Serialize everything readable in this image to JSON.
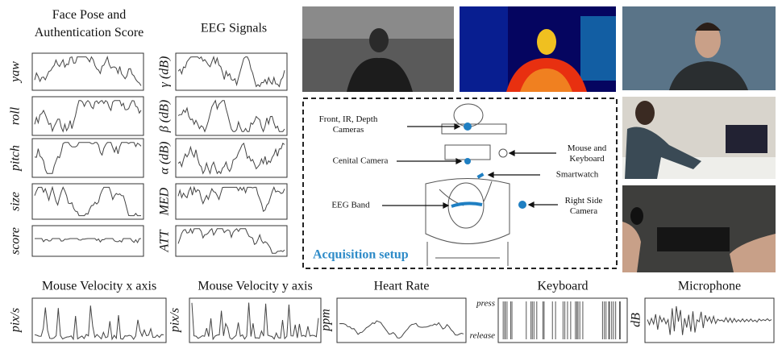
{
  "face_panel": {
    "title": "Face Pose and Authentication Score",
    "labels": [
      "yaw",
      "roll",
      "pitch",
      "size",
      "score"
    ]
  },
  "eeg_panel": {
    "title": "EEG Signals",
    "labels": [
      "γ (dB)",
      "β (dB)",
      "α (dB)",
      "MED",
      "ATT"
    ]
  },
  "setup": {
    "title": "Acquisition setup",
    "labels": [
      "Front, IR, Depth Cameras",
      "Mouse and Keyboard",
      "Cenital Camera",
      "Smartwatch",
      "EEG Band",
      "Right Side Camera"
    ]
  },
  "bottom": [
    {
      "title": "Mouse Velocity x axis",
      "unit": "pix/s"
    },
    {
      "title": "Mouse Velocity y axis",
      "unit": "pix/s"
    },
    {
      "title": "Heart Rate",
      "unit": "ppm"
    },
    {
      "title": "Keyboard",
      "top": "press",
      "bottom": "release"
    },
    {
      "title": "Microphone",
      "unit": "dB"
    }
  ]
}
